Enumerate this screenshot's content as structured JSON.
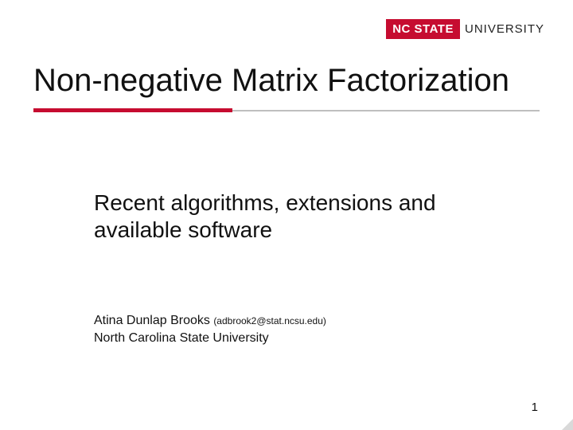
{
  "logo": {
    "badge": "NC STATE",
    "suffix": "UNIVERSITY",
    "badge_bg": "#c60c30"
  },
  "title": "Non-negative Matrix Factorization",
  "rule": {
    "accent_color": "#c60c30",
    "gray_color": "#bfbfbf"
  },
  "subtitle": "Recent algorithms, extensions and available software",
  "author": {
    "name": "Atina Dunlap Brooks",
    "email": "(adbrook2@stat.ncsu.edu)",
    "affiliation": "North Carolina State University"
  },
  "page_number": "1",
  "background_color": "#ffffff",
  "fonts": {
    "title": "Verdana",
    "body": "Arial"
  }
}
